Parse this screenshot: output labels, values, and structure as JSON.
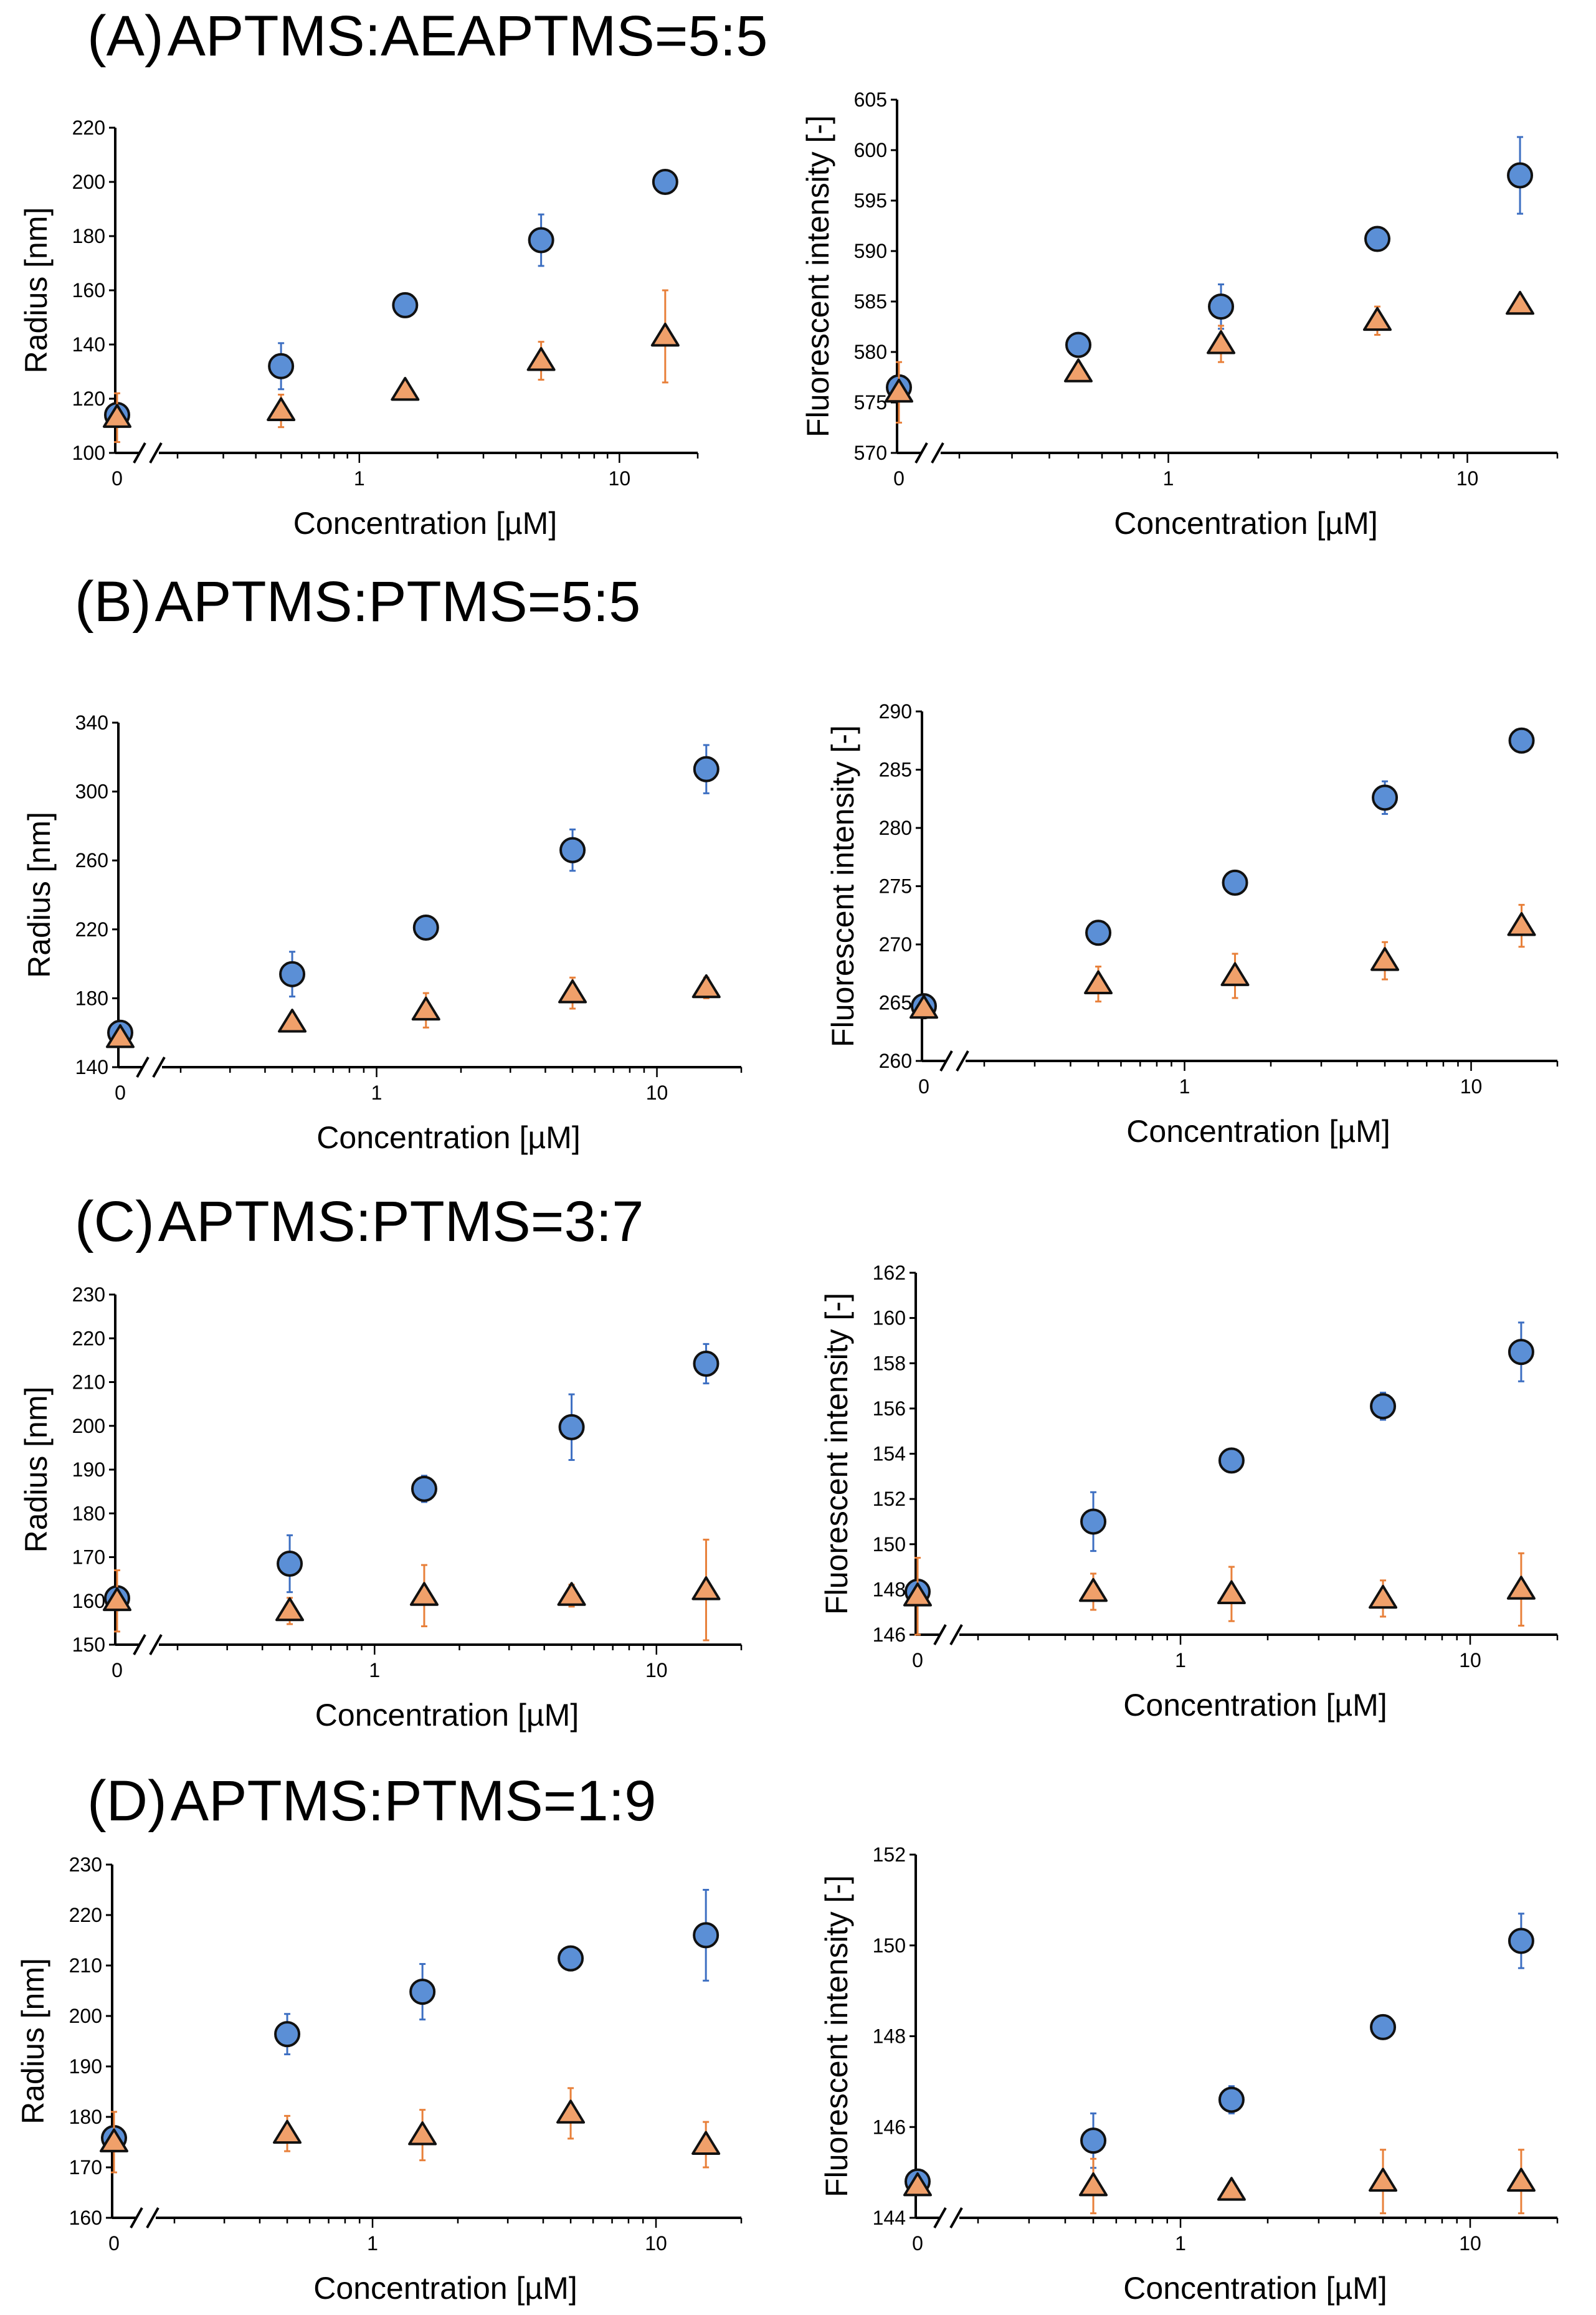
{
  "panels": [
    {
      "label": "(A)",
      "title": "APTMS:AEAPTMS=5:5"
    },
    {
      "label": "(B)",
      "title": "APTMS:PTMS=5:5"
    },
    {
      "label": "(C)",
      "title": "APTMS:PTMS=3:7"
    },
    {
      "label": "(D)",
      "title": "APTMS:PTMS=1:9"
    }
  ],
  "colors": {
    "circle": "#5b8fd6",
    "triangle": "#f0a06a",
    "circle_err": "#3d6fc2",
    "triangle_err": "#e8803a",
    "outline": "#111111"
  },
  "chart_data": [
    {
      "id": "A-radius",
      "type": "scatter",
      "x_scale": "log-with-zero-break",
      "xlabel": "Concentration [µM]",
      "ylabel": "Radius [nm]",
      "ylim": [
        100,
        220
      ],
      "yticks": [
        "100",
        "120",
        "140",
        "160",
        "180",
        "200",
        "220"
      ],
      "xticks": [
        "0",
        "1",
        "10"
      ],
      "x": [
        0,
        0.5,
        1.5,
        5,
        15
      ],
      "series": [
        {
          "name": "circle",
          "marker": "circle",
          "values": [
            114,
            132,
            154.5,
            178.5,
            200
          ],
          "errors": [
            3,
            8.5,
            0,
            9.5,
            4
          ]
        },
        {
          "name": "triangle",
          "marker": "triangle",
          "values": [
            113,
            115.5,
            123,
            134,
            143
          ],
          "errors": [
            9,
            6,
            0,
            7,
            17
          ]
        }
      ]
    },
    {
      "id": "A-fluor",
      "type": "scatter",
      "x_scale": "log-with-zero-break",
      "xlabel": "Concentration [µM]",
      "ylabel": "Fluorescent intensity [-]",
      "ylim": [
        570,
        605
      ],
      "yticks": [
        "570",
        "575",
        "580",
        "585",
        "590",
        "595",
        "600",
        "605"
      ],
      "xticks": [
        "0",
        "1",
        "10"
      ],
      "x": [
        0,
        0.5,
        1.5,
        5,
        15
      ],
      "series": [
        {
          "name": "circle",
          "marker": "circle",
          "values": [
            576.5,
            580.7,
            584.5,
            591.2,
            597.5
          ],
          "errors": [
            0,
            0,
            2.2,
            0,
            3.8
          ]
        },
        {
          "name": "triangle",
          "marker": "triangle",
          "values": [
            576,
            578,
            580.8,
            583.1,
            584.7
          ],
          "errors": [
            3,
            0,
            1.8,
            1.4,
            0
          ]
        }
      ]
    },
    {
      "id": "B-radius",
      "type": "scatter",
      "x_scale": "log-with-zero-break",
      "xlabel": "Concentration [µM]",
      "ylabel": "Radius [nm]",
      "ylim": [
        140,
        340
      ],
      "yticks": [
        "140",
        "180",
        "220",
        "260",
        "300",
        "340"
      ],
      "xticks": [
        "0",
        "1",
        "10"
      ],
      "x": [
        0,
        0.5,
        1.5,
        5,
        15
      ],
      "series": [
        {
          "name": "circle",
          "marker": "circle",
          "values": [
            160,
            194,
            221,
            266,
            313
          ],
          "errors": [
            0,
            13,
            0,
            12,
            14
          ]
        },
        {
          "name": "triangle",
          "marker": "triangle",
          "values": [
            157,
            166,
            173,
            183,
            186
          ],
          "errors": [
            0,
            0,
            10,
            9,
            6
          ]
        }
      ]
    },
    {
      "id": "B-fluor",
      "type": "scatter",
      "x_scale": "log-with-zero-break",
      "xlabel": "Concentration [µM]",
      "ylabel": "Fluorescent intensity [-]",
      "ylim": [
        260,
        290
      ],
      "yticks": [
        "260",
        "265",
        "270",
        "275",
        "280",
        "285",
        "290"
      ],
      "xticks": [
        "0",
        "1",
        "10"
      ],
      "x": [
        0,
        0.5,
        1.5,
        5,
        15
      ],
      "series": [
        {
          "name": "circle",
          "marker": "circle",
          "values": [
            264.7,
            271,
            275.3,
            282.6,
            287.5
          ],
          "errors": [
            0,
            0,
            0,
            1.4,
            0
          ]
        },
        {
          "name": "triangle",
          "marker": "triangle",
          "values": [
            264.5,
            266.6,
            267.3,
            268.6,
            271.6
          ],
          "errors": [
            0,
            1.5,
            1.9,
            1.6,
            1.8
          ]
        }
      ]
    },
    {
      "id": "C-radius",
      "type": "scatter",
      "x_scale": "log-with-zero-break",
      "xlabel": "Concentration [µM]",
      "ylabel": "Radius [nm]",
      "ylim": [
        150,
        230
      ],
      "yticks": [
        "150",
        "160",
        "170",
        "180",
        "190",
        "200",
        "210",
        "220",
        "230"
      ],
      "xticks": [
        "0",
        "1",
        "10"
      ],
      "x": [
        0,
        0.5,
        1.5,
        5,
        15
      ],
      "series": [
        {
          "name": "circle",
          "marker": "circle",
          "values": [
            160.6,
            168.5,
            185.6,
            199.7,
            214.2
          ],
          "errors": [
            0,
            6.5,
            3,
            7.5,
            4.5
          ]
        },
        {
          "name": "triangle",
          "marker": "triangle",
          "values": [
            160,
            157.7,
            161.2,
            161.2,
            162.5
          ],
          "errors": [
            7,
            3,
            7,
            2.5,
            11.5
          ]
        }
      ]
    },
    {
      "id": "C-fluor",
      "type": "scatter",
      "x_scale": "log-with-zero-break",
      "xlabel": "Concentration [µM]",
      "ylabel": "Fluorescent intensity [-]",
      "ylim": [
        146,
        162
      ],
      "yticks": [
        "146",
        "148",
        "150",
        "152",
        "154",
        "156",
        "158",
        "160",
        "162"
      ],
      "xticks": [
        "0",
        "1",
        "10"
      ],
      "x": [
        0,
        0.5,
        1.5,
        5,
        15
      ],
      "series": [
        {
          "name": "circle",
          "marker": "circle",
          "values": [
            147.9,
            151,
            153.7,
            156.1,
            158.5
          ],
          "errors": [
            0,
            1.3,
            0,
            0.6,
            1.3
          ]
        },
        {
          "name": "triangle",
          "marker": "triangle",
          "values": [
            147.7,
            147.9,
            147.8,
            147.6,
            148
          ],
          "errors": [
            1.7,
            0.8,
            1.2,
            0.8,
            1.6
          ]
        }
      ]
    },
    {
      "id": "D-radius",
      "type": "scatter",
      "x_scale": "log-with-zero-break",
      "xlabel": "Concentration [µM]",
      "ylabel": "Radius [nm]",
      "ylim": [
        160,
        230
      ],
      "yticks": [
        "160",
        "170",
        "180",
        "190",
        "200",
        "210",
        "220",
        "230"
      ],
      "xticks": [
        "0",
        "1",
        "10"
      ],
      "x": [
        0,
        0.5,
        1.5,
        5,
        15
      ],
      "series": [
        {
          "name": "circle",
          "marker": "circle",
          "values": [
            175.8,
            196.4,
            204.8,
            211.4,
            216
          ],
          "errors": [
            0,
            4,
            5.5,
            0,
            9
          ]
        },
        {
          "name": "triangle",
          "marker": "triangle",
          "values": [
            175,
            176.7,
            176.4,
            180.7,
            174.5
          ],
          "errors": [
            6,
            3.5,
            5,
            5,
            4.5
          ]
        }
      ]
    },
    {
      "id": "D-fluor",
      "type": "scatter",
      "x_scale": "log-with-zero-break",
      "xlabel": "Concentration [µM]",
      "ylabel": "Fluorescent intensity [-]",
      "ylim": [
        144,
        152
      ],
      "yticks": [
        "144",
        "146",
        "148",
        "150",
        "152"
      ],
      "xticks": [
        "0",
        "1",
        "10"
      ],
      "x": [
        0,
        0.5,
        1.5,
        5,
        15
      ],
      "series": [
        {
          "name": "circle",
          "marker": "circle",
          "values": [
            144.8,
            145.7,
            146.6,
            148.2,
            150.1
          ],
          "errors": [
            0,
            0.6,
            0.3,
            0,
            0.6
          ]
        },
        {
          "name": "triangle",
          "marker": "triangle",
          "values": [
            144.7,
            144.7,
            144.6,
            144.8,
            144.8
          ],
          "errors": [
            0,
            0.6,
            0,
            0.7,
            0.7
          ]
        }
      ]
    }
  ]
}
